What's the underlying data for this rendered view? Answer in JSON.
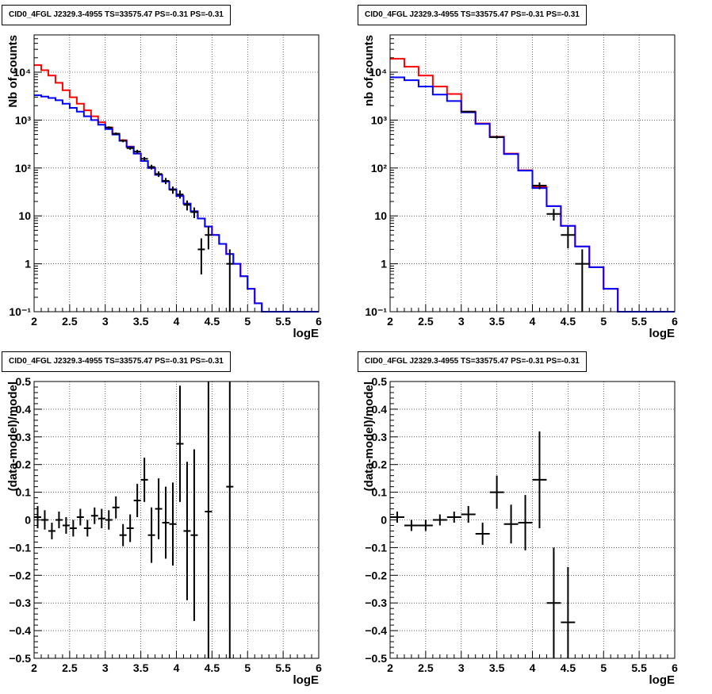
{
  "chart_data": [
    {
      "type": "line",
      "title": "CID0_4FGL J2329.3-4955 TS=33575.47 PS=-0.31 PS=-0.31",
      "xlabel": "logE",
      "ylabel": "Nb of counts",
      "xlim": [
        2,
        6
      ],
      "ylim": [
        0.1,
        60000
      ],
      "yscale": "log",
      "xticks": [
        2,
        2.5,
        3,
        3.5,
        4,
        4.5,
        5,
        5.5,
        6
      ],
      "yticks": [
        0.1,
        1,
        10,
        100,
        1000,
        10000
      ],
      "ytick_labels": [
        "10⁻¹",
        "1",
        "10",
        "10²",
        "10³",
        "10⁴"
      ],
      "grid": true,
      "bin_edges": [
        2.0,
        2.1,
        2.2,
        2.3,
        2.4,
        2.5,
        2.6,
        2.7,
        2.8,
        2.9,
        3.0,
        3.1,
        3.2,
        3.3,
        3.4,
        3.5,
        3.6,
        3.7,
        3.8,
        3.9,
        4.0,
        4.1,
        4.2,
        4.3,
        4.4,
        4.5,
        4.6,
        4.7,
        4.8,
        4.9,
        5.0,
        5.1,
        5.2,
        5.3,
        5.4,
        5.5,
        5.6,
        5.7,
        5.8,
        5.9,
        6.0
      ],
      "series": [
        {
          "color": "#ff0000",
          "style": "step",
          "values": [
            14000,
            11000,
            8500,
            6000,
            4200,
            3000,
            2200,
            1600,
            1200,
            900,
            700,
            520,
            380,
            280,
            200,
            140,
            100,
            72,
            52,
            36,
            26,
            18,
            12.5,
            8.8,
            6.0,
            4.0,
            2.6,
            1.6,
            1.0,
            0.55,
            0.3,
            0.15,
            0.1,
            0.1,
            0.1,
            0.1,
            0.1,
            0.1,
            0.1,
            0.1
          ]
        },
        {
          "color": "#0000ff",
          "style": "step",
          "values": [
            3300,
            3100,
            2900,
            2600,
            2200,
            1800,
            1500,
            1200,
            1000,
            800,
            650,
            500,
            370,
            275,
            200,
            140,
            100,
            72,
            52,
            36,
            26,
            18,
            12.5,
            8.8,
            6.0,
            4.0,
            2.6,
            1.6,
            1.0,
            0.55,
            0.3,
            0.15,
            0.1,
            0.1,
            0.1,
            0.1,
            0.1,
            0.1,
            0.1,
            0.1
          ]
        },
        {
          "color": "#000000",
          "style": "errorbars",
          "points": [
            {
              "x": 3.05,
              "y": 700,
              "ylo": 660,
              "yhi": 740
            },
            {
              "x": 3.15,
              "y": 520,
              "ylo": 490,
              "yhi": 550
            },
            {
              "x": 3.25,
              "y": 370,
              "ylo": 345,
              "yhi": 395
            },
            {
              "x": 3.35,
              "y": 260,
              "ylo": 240,
              "yhi": 280
            },
            {
              "x": 3.45,
              "y": 220,
              "ylo": 200,
              "yhi": 240
            },
            {
              "x": 3.55,
              "y": 155,
              "ylo": 140,
              "yhi": 170
            },
            {
              "x": 3.65,
              "y": 105,
              "ylo": 93,
              "yhi": 117
            },
            {
              "x": 3.75,
              "y": 75,
              "ylo": 65,
              "yhi": 85
            },
            {
              "x": 3.85,
              "y": 54,
              "ylo": 46,
              "yhi": 62
            },
            {
              "x": 3.95,
              "y": 35,
              "ylo": 29,
              "yhi": 41
            },
            {
              "x": 4.05,
              "y": 28,
              "ylo": 23,
              "yhi": 34
            },
            {
              "x": 4.15,
              "y": 17,
              "ylo": 13,
              "yhi": 21
            },
            {
              "x": 4.25,
              "y": 12,
              "ylo": 9,
              "yhi": 15
            },
            {
              "x": 4.35,
              "y": 2,
              "ylo": 0.6,
              "yhi": 3.4
            },
            {
              "x": 4.45,
              "y": 4,
              "ylo": 2,
              "yhi": 6
            },
            {
              "x": 4.75,
              "y": 1,
              "ylo": 0.1,
              "yhi": 2.0
            }
          ]
        }
      ]
    },
    {
      "type": "line",
      "title": "CID0_4FGL J2329.3-4955 TS=33575.47 PS=-0.31 PS=-0.31",
      "xlabel": "logE",
      "ylabel": "nb of counts",
      "xlim": [
        2,
        6
      ],
      "ylim": [
        0.1,
        60000
      ],
      "yscale": "log",
      "xticks": [
        2,
        2.5,
        3,
        3.5,
        4,
        4.5,
        5,
        5.5,
        6
      ],
      "yticks": [
        0.1,
        1,
        10,
        100,
        1000,
        10000
      ],
      "ytick_labels": [
        "10⁻¹",
        "1",
        "10",
        "10²",
        "10³",
        "10⁴"
      ],
      "grid": true,
      "bin_edges": [
        2.0,
        2.2,
        2.4,
        2.6,
        2.8,
        3.0,
        3.2,
        3.4,
        3.6,
        3.8,
        4.0,
        4.2,
        4.4,
        4.6,
        4.8,
        5.0,
        5.2,
        5.4,
        5.6,
        5.8,
        6.0
      ],
      "series": [
        {
          "color": "#ff0000",
          "style": "step",
          "values": [
            19000,
            13000,
            8500,
            5000,
            3500,
            1500,
            850,
            450,
            200,
            90,
            40,
            16,
            6.2,
            2.3,
            0.85,
            0.3,
            0.1,
            0.1,
            0.1,
            0.1
          ]
        },
        {
          "color": "#0000ff",
          "style": "step",
          "values": [
            7800,
            6800,
            5000,
            3400,
            2500,
            1450,
            830,
            440,
            195,
            88,
            38,
            16,
            6.2,
            2.3,
            0.85,
            0.3,
            0.1,
            0.1,
            0.1,
            0.1
          ]
        },
        {
          "color": "#000000",
          "style": "errorbars",
          "points": [
            {
              "x": 3.1,
              "y": 1500,
              "ylo": 1450,
              "yhi": 1550
            },
            {
              "x": 3.5,
              "y": 440,
              "ylo": 410,
              "yhi": 470
            },
            {
              "x": 4.1,
              "y": 43,
              "ylo": 36,
              "yhi": 50
            },
            {
              "x": 4.3,
              "y": 11,
              "ylo": 8,
              "yhi": 14
            },
            {
              "x": 4.5,
              "y": 4,
              "ylo": 2.1,
              "yhi": 6
            },
            {
              "x": 4.7,
              "y": 1,
              "ylo": 0.1,
              "yhi": 2.0
            }
          ]
        }
      ]
    },
    {
      "type": "scatter",
      "title": "CID0_4FGL J2329.3-4955 TS=33575.47 PS=-0.31 PS=-0.31",
      "xlabel": "logE",
      "ylabel": "(data-model)/model",
      "xlim": [
        2,
        6
      ],
      "ylim": [
        -0.5,
        0.5
      ],
      "xticks": [
        2,
        2.5,
        3,
        3.5,
        4,
        4.5,
        5,
        5.5,
        6
      ],
      "yticks": [
        -0.5,
        -0.4,
        -0.3,
        -0.2,
        -0.1,
        0,
        0.1,
        0.2,
        0.3,
        0.4,
        0.5
      ],
      "grid": true,
      "xerr": 0.05,
      "points": [
        {
          "x": 2.05,
          "y": 0.01,
          "err": 0.04
        },
        {
          "x": 2.15,
          "y": 0.0,
          "err": 0.035
        },
        {
          "x": 2.25,
          "y": -0.04,
          "err": 0.03
        },
        {
          "x": 2.35,
          "y": 0.0,
          "err": 0.03
        },
        {
          "x": 2.45,
          "y": -0.02,
          "err": 0.03
        },
        {
          "x": 2.55,
          "y": -0.03,
          "err": 0.03
        },
        {
          "x": 2.65,
          "y": 0.01,
          "err": 0.03
        },
        {
          "x": 2.75,
          "y": -0.03,
          "err": 0.03
        },
        {
          "x": 2.85,
          "y": 0.015,
          "err": 0.03
        },
        {
          "x": 2.95,
          "y": 0.005,
          "err": 0.035
        },
        {
          "x": 3.05,
          "y": 0.0,
          "err": 0.035
        },
        {
          "x": 3.15,
          "y": 0.045,
          "err": 0.04
        },
        {
          "x": 3.25,
          "y": -0.055,
          "err": 0.04
        },
        {
          "x": 3.35,
          "y": -0.03,
          "err": 0.05
        },
        {
          "x": 3.45,
          "y": 0.07,
          "err": 0.06
        },
        {
          "x": 3.55,
          "y": 0.145,
          "err": 0.08
        },
        {
          "x": 3.65,
          "y": -0.055,
          "err": 0.1
        },
        {
          "x": 3.75,
          "y": 0.04,
          "err": 0.11
        },
        {
          "x": 3.85,
          "y": -0.01,
          "err": 0.13
        },
        {
          "x": 3.95,
          "y": -0.015,
          "err": 0.15
        },
        {
          "x": 4.05,
          "y": 0.275,
          "err": 0.21
        },
        {
          "x": 4.15,
          "y": -0.04,
          "err": 0.25
        },
        {
          "x": 4.25,
          "y": -0.055,
          "err": 0.31
        },
        {
          "x": 4.45,
          "y": 0.03,
          "err": 0.55
        },
        {
          "x": 4.75,
          "y": 0.12,
          "err": 0.65
        }
      ]
    },
    {
      "type": "scatter",
      "title": "CID0_4FGL J2329.3-4955 TS=33575.47 PS=-0.31 PS=-0.31",
      "xlabel": "logE",
      "ylabel": "(data-model)/model",
      "xlim": [
        2,
        6
      ],
      "ylim": [
        -0.5,
        0.5
      ],
      "xticks": [
        2,
        2.5,
        3,
        3.5,
        4,
        4.5,
        5,
        5.5,
        6
      ],
      "yticks": [
        -0.5,
        -0.4,
        -0.3,
        -0.2,
        -0.1,
        0,
        0.1,
        0.2,
        0.3,
        0.4,
        0.5
      ],
      "grid": true,
      "xerr": 0.1,
      "points": [
        {
          "x": 2.1,
          "y": 0.01,
          "err": 0.02
        },
        {
          "x": 2.3,
          "y": -0.02,
          "err": 0.02
        },
        {
          "x": 2.5,
          "y": -0.02,
          "err": 0.02
        },
        {
          "x": 2.7,
          "y": 0.0,
          "err": 0.02
        },
        {
          "x": 2.9,
          "y": 0.01,
          "err": 0.02
        },
        {
          "x": 3.1,
          "y": 0.02,
          "err": 0.03
        },
        {
          "x": 3.3,
          "y": -0.05,
          "err": 0.04
        },
        {
          "x": 3.5,
          "y": 0.1,
          "err": 0.06
        },
        {
          "x": 3.7,
          "y": -0.015,
          "err": 0.07
        },
        {
          "x": 3.9,
          "y": -0.01,
          "err": 0.1
        },
        {
          "x": 4.1,
          "y": 0.145,
          "err": 0.175
        },
        {
          "x": 4.3,
          "y": -0.3,
          "err": 0.2
        },
        {
          "x": 4.5,
          "y": -0.37,
          "err": 0.2
        }
      ]
    }
  ]
}
